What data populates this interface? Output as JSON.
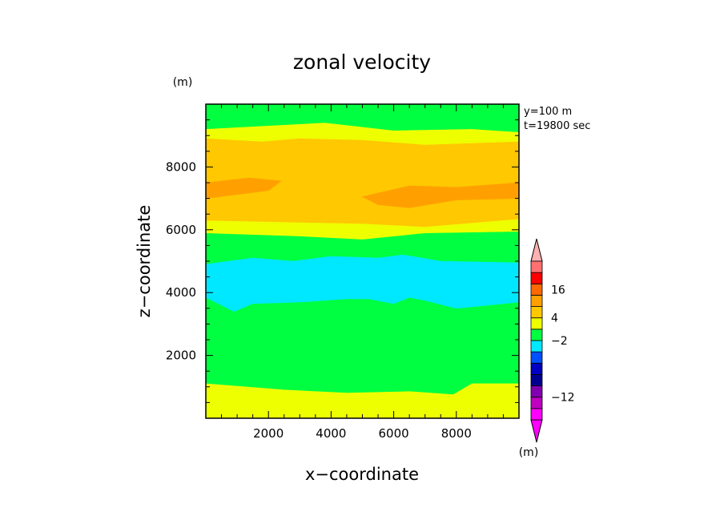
{
  "chart_data": {
    "type": "heatmap",
    "subtype": "filled-contour",
    "title": "zonal velocity",
    "xlabel": "x−coordinate",
    "ylabel": "z−coordinate",
    "x_unit": "(m)",
    "y_unit": "(m)",
    "info_lines": [
      "y=100 m",
      "t=19800 sec"
    ],
    "xlim": [
      0,
      10000
    ],
    "ylim": [
      0,
      10000
    ],
    "x_ticks": [
      2000,
      4000,
      6000,
      8000
    ],
    "y_ticks": [
      2000,
      4000,
      6000,
      8000
    ],
    "grid": false,
    "colorbar": {
      "unit": "(m)",
      "bins": [
        "#ff00ff",
        "#c000c0",
        "#8000b0",
        "#000090",
        "#0000c0",
        "#0050ff",
        "#00e8ff",
        "#00ff40",
        "#eeff00",
        "#ffc800",
        "#ffa000",
        "#ff6800",
        "#ff0000",
        "#ff7070"
      ],
      "labels": [
        {
          "text": "16",
          "bin": 11.5
        },
        {
          "text": "4",
          "bin": 9
        },
        {
          "text": "−2",
          "bin": 7
        },
        {
          "text": "−12",
          "bin": 2
        }
      ],
      "extend_low_color": "#ff00ff",
      "extend_high_color": "#ffb0b0"
    },
    "regions": [
      {
        "color": "#00ff40",
        "boundary": [
          [
            0,
            10000
          ],
          [
            10000,
            10000
          ],
          [
            10000,
            0
          ],
          [
            0,
            0
          ]
        ]
      },
      {
        "color": "#eeff00",
        "boundary": [
          [
            0,
            9200
          ],
          [
            3800,
            9400
          ],
          [
            6000,
            9150
          ],
          [
            8500,
            9200
          ],
          [
            10000,
            9100
          ],
          [
            10000,
            5950
          ],
          [
            7000,
            5900
          ],
          [
            5000,
            5700
          ],
          [
            3000,
            5800
          ],
          [
            0,
            5900
          ]
        ]
      },
      {
        "color": "#ffc800",
        "boundary": [
          [
            0,
            8900
          ],
          [
            1800,
            8800
          ],
          [
            3000,
            8900
          ],
          [
            5000,
            8850
          ],
          [
            7000,
            8700
          ],
          [
            10000,
            8800
          ],
          [
            10000,
            6350
          ],
          [
            7000,
            6100
          ],
          [
            5000,
            6200
          ],
          [
            0,
            6300
          ]
        ]
      },
      {
        "color": "#ffa000",
        "boundary": [
          [
            0,
            7500
          ],
          [
            1400,
            7650
          ],
          [
            2400,
            7550
          ],
          [
            2000,
            7250
          ],
          [
            0,
            7000
          ]
        ]
      },
      {
        "color": "#ffa000",
        "boundary": [
          [
            5000,
            7050
          ],
          [
            6500,
            7400
          ],
          [
            8000,
            7350
          ],
          [
            10000,
            7500
          ],
          [
            10000,
            7000
          ],
          [
            8000,
            6950
          ],
          [
            6500,
            6700
          ],
          [
            5500,
            6800
          ]
        ]
      },
      {
        "color": "#eeff00",
        "boundary": [
          [
            0,
            1100
          ],
          [
            2500,
            900
          ],
          [
            4500,
            800
          ],
          [
            6500,
            850
          ],
          [
            7900,
            750
          ],
          [
            8500,
            1100
          ],
          [
            10000,
            1100
          ],
          [
            10000,
            0
          ],
          [
            0,
            0
          ]
        ]
      },
      {
        "color": "#00e8ff",
        "boundary": [
          [
            0,
            4900
          ],
          [
            1500,
            5100
          ],
          [
            2800,
            5000
          ],
          [
            4000,
            5150
          ],
          [
            5500,
            5100
          ],
          [
            6300,
            5200
          ],
          [
            7500,
            5000
          ],
          [
            10000,
            4950
          ],
          [
            10000,
            3700
          ],
          [
            9000,
            3600
          ],
          [
            8000,
            3500
          ],
          [
            7000,
            3750
          ],
          [
            6500,
            3850
          ],
          [
            6000,
            3650
          ],
          [
            5200,
            3800
          ],
          [
            4500,
            3800
          ],
          [
            3000,
            3700
          ],
          [
            1500,
            3650
          ],
          [
            900,
            3400
          ],
          [
            0,
            3850
          ]
        ]
      }
    ]
  }
}
